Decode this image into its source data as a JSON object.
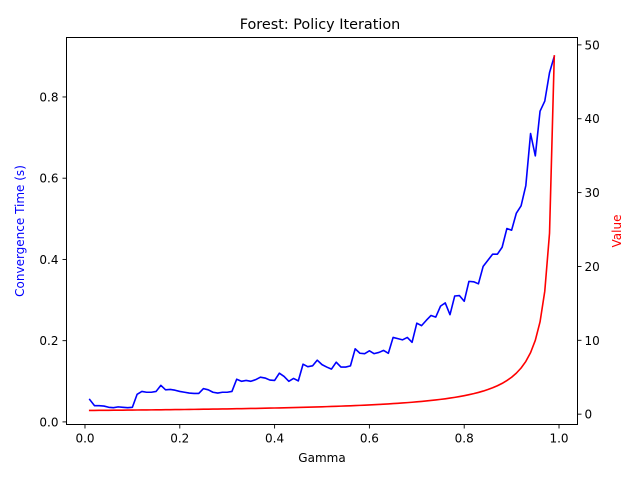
{
  "chart_data": {
    "type": "line",
    "title": "Forest: Policy Iteration",
    "xlabel": "Gamma",
    "ylabel_left": "Convergence Time (s)",
    "ylabel_right": "Value",
    "xlim": [
      -0.039,
      1.039
    ],
    "ylim_left": [
      -0.0064,
      0.9464
    ],
    "ylim_right": [
      -1.4,
      51
    ],
    "x_ticks": [
      0.0,
      0.2,
      0.4,
      0.6,
      0.8,
      1.0
    ],
    "x_tick_labels": [
      "0.0",
      "0.2",
      "0.4",
      "0.6",
      "0.8",
      "1.0"
    ],
    "y_left_ticks": [
      0.0,
      0.2,
      0.4,
      0.6,
      0.8
    ],
    "y_left_tick_labels": [
      "0.0",
      "0.2",
      "0.4",
      "0.6",
      "0.8"
    ],
    "y_right_ticks": [
      0,
      10,
      20,
      30,
      40,
      50
    ],
    "y_right_tick_labels": [
      "0",
      "10",
      "20",
      "30",
      "40",
      "50"
    ],
    "grid": false,
    "legend": "none",
    "colors": {
      "left_axis_label": "#0000ff",
      "right_axis_label": "#ff0000"
    },
    "series": [
      {
        "axis": "left",
        "color": "#0000ff",
        "x": [
          0.01,
          0.02,
          0.03,
          0.04,
          0.05,
          0.06,
          0.07,
          0.08,
          0.09,
          0.1,
          0.11,
          0.12,
          0.13,
          0.14,
          0.15,
          0.16,
          0.17,
          0.18,
          0.19,
          0.2,
          0.21,
          0.22,
          0.23,
          0.24,
          0.25,
          0.26,
          0.27,
          0.28,
          0.29,
          0.3,
          0.31,
          0.32,
          0.33,
          0.34,
          0.35,
          0.36,
          0.37,
          0.38,
          0.39,
          0.4,
          0.41,
          0.42,
          0.43,
          0.44,
          0.45,
          0.46,
          0.47,
          0.48,
          0.49,
          0.5,
          0.51,
          0.52,
          0.53,
          0.54,
          0.55,
          0.56,
          0.57,
          0.58,
          0.59,
          0.6,
          0.61,
          0.62,
          0.63,
          0.64,
          0.65,
          0.66,
          0.67,
          0.68,
          0.69,
          0.7,
          0.71,
          0.72,
          0.73,
          0.74,
          0.75,
          0.76,
          0.77,
          0.78,
          0.79,
          0.8,
          0.81,
          0.82,
          0.83,
          0.84,
          0.85,
          0.86,
          0.87,
          0.88,
          0.89,
          0.9,
          0.91,
          0.92,
          0.93,
          0.94,
          0.95,
          0.96,
          0.97,
          0.98,
          0.99
        ],
        "values": [
          0.055,
          0.04,
          0.04,
          0.039,
          0.036,
          0.035,
          0.037,
          0.036,
          0.035,
          0.036,
          0.068,
          0.075,
          0.073,
          0.073,
          0.075,
          0.09,
          0.079,
          0.08,
          0.078,
          0.075,
          0.073,
          0.071,
          0.07,
          0.07,
          0.082,
          0.079,
          0.073,
          0.071,
          0.073,
          0.073,
          0.075,
          0.105,
          0.1,
          0.102,
          0.1,
          0.104,
          0.11,
          0.108,
          0.103,
          0.102,
          0.12,
          0.112,
          0.1,
          0.107,
          0.101,
          0.142,
          0.136,
          0.138,
          0.152,
          0.141,
          0.135,
          0.13,
          0.147,
          0.135,
          0.135,
          0.138,
          0.18,
          0.169,
          0.168,
          0.175,
          0.168,
          0.171,
          0.176,
          0.169,
          0.208,
          0.205,
          0.202,
          0.208,
          0.196,
          0.243,
          0.237,
          0.25,
          0.262,
          0.258,
          0.285,
          0.293,
          0.264,
          0.31,
          0.311,
          0.297,
          0.346,
          0.345,
          0.34,
          0.383,
          0.398,
          0.413,
          0.413,
          0.43,
          0.476,
          0.472,
          0.514,
          0.532,
          0.582,
          0.71,
          0.655,
          0.765,
          0.79,
          0.86,
          0.9
        ]
      },
      {
        "axis": "right",
        "color": "#ff0000",
        "x": [
          0.01,
          0.02,
          0.03,
          0.04,
          0.05,
          0.06,
          0.07,
          0.08,
          0.09,
          0.1,
          0.11,
          0.12,
          0.13,
          0.14,
          0.15,
          0.16,
          0.17,
          0.18,
          0.19,
          0.2,
          0.21,
          0.22,
          0.23,
          0.24,
          0.25,
          0.26,
          0.27,
          0.28,
          0.29,
          0.3,
          0.31,
          0.32,
          0.33,
          0.34,
          0.35,
          0.36,
          0.37,
          0.38,
          0.39,
          0.4,
          0.41,
          0.42,
          0.43,
          0.44,
          0.45,
          0.46,
          0.47,
          0.48,
          0.49,
          0.5,
          0.51,
          0.52,
          0.53,
          0.54,
          0.55,
          0.56,
          0.57,
          0.58,
          0.59,
          0.6,
          0.61,
          0.62,
          0.63,
          0.64,
          0.65,
          0.66,
          0.67,
          0.68,
          0.69,
          0.7,
          0.71,
          0.72,
          0.73,
          0.74,
          0.75,
          0.76,
          0.77,
          0.78,
          0.79,
          0.8,
          0.81,
          0.82,
          0.83,
          0.84,
          0.85,
          0.86,
          0.87,
          0.88,
          0.89,
          0.9,
          0.91,
          0.92,
          0.93,
          0.94,
          0.95,
          0.96,
          0.97,
          0.98,
          0.99
        ],
        "values": [
          0.505,
          0.51,
          0.515,
          0.521,
          0.526,
          0.532,
          0.538,
          0.543,
          0.549,
          0.556,
          0.562,
          0.568,
          0.575,
          0.581,
          0.588,
          0.595,
          0.602,
          0.61,
          0.617,
          0.625,
          0.633,
          0.641,
          0.649,
          0.658,
          0.667,
          0.676,
          0.685,
          0.694,
          0.704,
          0.714,
          0.725,
          0.735,
          0.746,
          0.758,
          0.769,
          0.781,
          0.794,
          0.806,
          0.82,
          0.833,
          0.847,
          0.862,
          0.877,
          0.893,
          0.909,
          0.926,
          0.943,
          0.962,
          0.98,
          1.0,
          1.02,
          1.042,
          1.064,
          1.087,
          1.111,
          1.136,
          1.163,
          1.19,
          1.22,
          1.25,
          1.282,
          1.316,
          1.351,
          1.389,
          1.429,
          1.471,
          1.515,
          1.563,
          1.613,
          1.667,
          1.724,
          1.786,
          1.852,
          1.923,
          2.0,
          2.083,
          2.174,
          2.273,
          2.381,
          2.5,
          2.632,
          2.778,
          2.941,
          3.125,
          3.333,
          3.571,
          3.846,
          4.167,
          4.545,
          5.0,
          5.556,
          6.25,
          7.143,
          8.333,
          10.0,
          12.5,
          16.667,
          24.5,
          48.5
        ]
      }
    ]
  }
}
